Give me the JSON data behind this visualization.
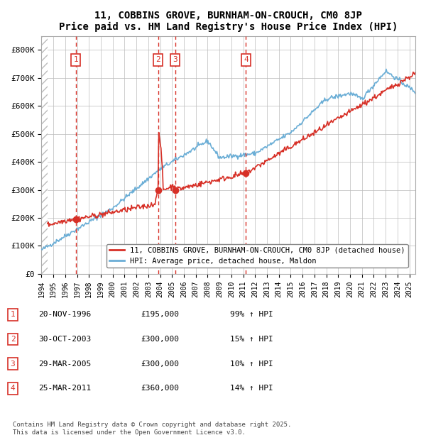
{
  "title": "11, COBBINS GROVE, BURNHAM-ON-CROUCH, CM0 8JP",
  "subtitle": "Price paid vs. HM Land Registry's House Price Index (HPI)",
  "ylim": [
    0,
    850000
  ],
  "xlim_start": 1994.0,
  "xlim_end": 2025.5,
  "hpi_color": "#6baed6",
  "price_color": "#d73027",
  "grid_color": "#bbbbbb",
  "legend_red_label": "11, COBBINS GROVE, BURNHAM-ON-CROUCH, CM0 8JP (detached house)",
  "legend_blue_label": "HPI: Average price, detached house, Maldon",
  "transactions": [
    {
      "num": 1,
      "date_label": "20-NOV-1996",
      "price_label": "£195,000",
      "pct_label": "99% ↑ HPI",
      "year": 1996.89,
      "price": 195000
    },
    {
      "num": 2,
      "date_label": "30-OCT-2003",
      "price_label": "£300,000",
      "pct_label": "15% ↑ HPI",
      "year": 2003.83,
      "price": 300000
    },
    {
      "num": 3,
      "date_label": "29-MAR-2005",
      "price_label": "£300,000",
      "pct_label": "10% ↑ HPI",
      "year": 2005.25,
      "price": 300000
    },
    {
      "num": 4,
      "date_label": "25-MAR-2011",
      "price_label": "£360,000",
      "pct_label": "14% ↑ HPI",
      "year": 2011.23,
      "price": 360000
    }
  ],
  "footnote": "Contains HM Land Registry data © Crown copyright and database right 2025.\nThis data is licensed under the Open Government Licence v3.0.",
  "yticks": [
    0,
    100000,
    200000,
    300000,
    400000,
    500000,
    600000,
    700000,
    800000
  ],
  "ytick_labels": [
    "£0",
    "£100K",
    "£200K",
    "£300K",
    "£400K",
    "£500K",
    "£600K",
    "£700K",
    "£800K"
  ]
}
